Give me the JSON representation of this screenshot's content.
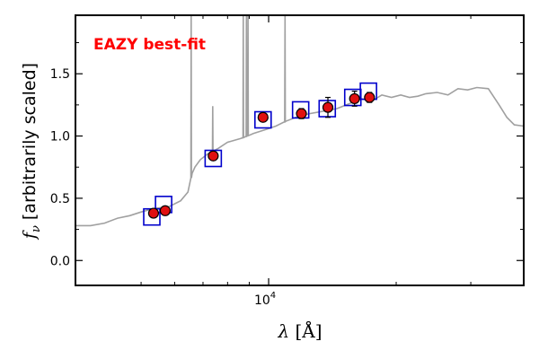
{
  "chart_data": {
    "type": "scatter",
    "annotation": "EAZY best-fit",
    "annotation_color": "#ff0000",
    "ylabel_symbol": "f",
    "ylabel_subscript": "ν",
    "ylabel_text": " [arbitrarily scaled]",
    "xlabel_symbol": "λ",
    "xlabel_unit": " [Å]",
    "x_scale": "log",
    "xlim": [
      3500,
      40000
    ],
    "ylim": [
      -0.2,
      1.97
    ],
    "x_ticks": [
      {
        "value": 10000,
        "base": "10",
        "exp": "4"
      }
    ],
    "x_minor_ticks": [
      5000,
      6000,
      7000,
      8000,
      9000,
      20000,
      30000
    ],
    "y_ticks": [
      {
        "value": 0.0,
        "label": "0.0"
      },
      {
        "value": 0.5,
        "label": "0.5"
      },
      {
        "value": 1.0,
        "label": "1.0"
      },
      {
        "value": 1.5,
        "label": "1.5"
      }
    ],
    "y_minor_ticks": [
      0.25,
      0.75,
      1.25,
      1.75
    ],
    "template_color": "#a0a0a0",
    "model_color": "#0000cc",
    "obs_fill": "#e01010",
    "template": {
      "name": "best-fit template",
      "x": [
        3500,
        3800,
        4100,
        4400,
        4700,
        5000,
        5400,
        5800,
        6200,
        6450,
        6600,
        6700,
        6900,
        7200,
        7600,
        8000,
        8600,
        9200,
        9800,
        10400,
        11000,
        11800,
        12500,
        13500,
        14500,
        15500,
        16500,
        17500,
        18500,
        19500,
        20500,
        21500,
        22500,
        23500,
        25000,
        26500,
        28000,
        29500,
        31000,
        33000,
        35000,
        36500,
        38000,
        40000
      ],
      "y": [
        0.28,
        0.28,
        0.3,
        0.34,
        0.36,
        0.39,
        0.42,
        0.43,
        0.48,
        0.55,
        0.7,
        0.75,
        0.81,
        0.86,
        0.9,
        0.95,
        0.98,
        1.02,
        1.05,
        1.08,
        1.12,
        1.16,
        1.18,
        1.2,
        1.22,
        1.26,
        1.3,
        1.28,
        1.33,
        1.31,
        1.33,
        1.31,
        1.32,
        1.34,
        1.35,
        1.33,
        1.38,
        1.37,
        1.39,
        1.38,
        1.25,
        1.15,
        1.09,
        1.08
      ]
    },
    "emission_lines": [
      {
        "wavelength": 6563,
        "peak": 1.97
      },
      {
        "wavelength": 7381,
        "peak": 1.24
      },
      {
        "wavelength": 8712,
        "peak": 1.97
      },
      {
        "wavelength": 8863,
        "peak": 1.97
      },
      {
        "wavelength": 8940,
        "peak": 1.97
      },
      {
        "wavelength": 10930,
        "peak": 1.97
      }
    ],
    "series": [
      {
        "name": "model photometry",
        "marker": "square",
        "x": [
          5300,
          5650,
          7400,
          9700,
          11900,
          13750,
          15800,
          17200
        ],
        "y": [
          0.35,
          0.45,
          0.82,
          1.13,
          1.21,
          1.22,
          1.31,
          1.36
        ]
      },
      {
        "name": "observed photometry",
        "marker": "circle",
        "x": [
          5350,
          5700,
          7400,
          9700,
          11950,
          13800,
          15950,
          17300
        ],
        "y": [
          0.38,
          0.4,
          0.84,
          1.15,
          1.18,
          1.23,
          1.3,
          1.31
        ],
        "yerr": [
          0.02,
          0.02,
          0.03,
          0.03,
          0.04,
          0.08,
          0.06,
          0.04
        ]
      }
    ]
  }
}
